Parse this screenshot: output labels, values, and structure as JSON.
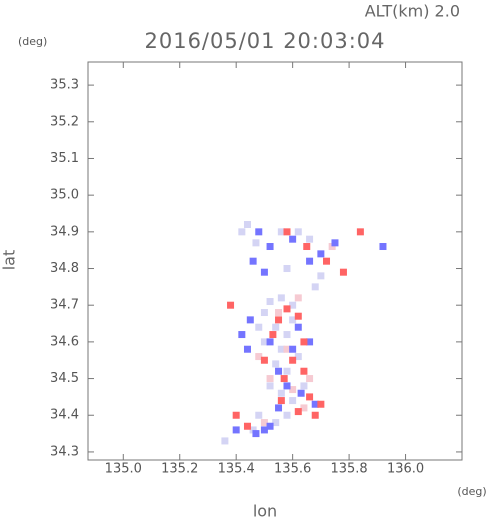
{
  "chart_data": {
    "type": "scatter",
    "title": "2016/05/01 20:03:04",
    "subtitle": "ALT(km) 2.0",
    "x_label": "lon",
    "y_label": "lat",
    "x_unit": "(deg)",
    "y_unit": "(deg)",
    "xlim": [
      134.875,
      136.2
    ],
    "ylim": [
      34.278,
      35.363
    ],
    "xticks": [
      {
        "value": 135,
        "label": "135.0"
      },
      135.2,
      135.4,
      135.6,
      135.8,
      {
        "value": 136,
        "label": "136.0"
      }
    ],
    "yticks": [
      34.3,
      34.4,
      34.5,
      34.6,
      34.7,
      34.8,
      34.9,
      {
        "value": 35,
        "label": "35.0"
      },
      35.1,
      35.2,
      35.3
    ],
    "series": [
      {
        "color": "#d4d4f4",
        "x": [
          135.42,
          135.44,
          135.47,
          135.56,
          135.62,
          135.66,
          135.58,
          135.7,
          135.68,
          135.52,
          135.56,
          135.6,
          135.5,
          135.54,
          135.58,
          135.5,
          135.56,
          135.62,
          135.54,
          135.58,
          135.52,
          135.56,
          135.6,
          135.64,
          135.58,
          135.54,
          135.48,
          135.46,
          135.36,
          135.6,
          135.48
        ],
        "values": [
          34.9,
          34.92,
          34.87,
          34.9,
          34.9,
          34.88,
          34.8,
          34.78,
          34.75,
          34.71,
          34.72,
          34.7,
          34.68,
          34.64,
          34.62,
          34.6,
          34.58,
          34.56,
          34.54,
          34.52,
          34.48,
          34.46,
          34.44,
          34.48,
          34.4,
          34.38,
          34.4,
          34.36,
          34.33,
          34.66,
          34.64
        ]
      },
      {
        "color": "#f6cad2",
        "x": [
          135.55,
          135.62,
          135.58,
          135.52,
          135.6,
          135.64,
          135.5,
          135.66,
          135.48,
          135.74
        ],
        "values": [
          34.68,
          34.72,
          34.58,
          34.5,
          34.47,
          34.42,
          34.38,
          34.5,
          34.56,
          34.86
        ]
      },
      {
        "color": "#7474ff",
        "x": [
          135.48,
          135.52,
          135.6,
          135.46,
          135.5,
          135.66,
          135.7,
          135.75,
          135.92,
          135.45,
          135.42,
          135.52,
          135.6,
          135.62,
          135.55,
          135.58,
          135.63,
          135.68,
          135.55,
          135.5,
          135.47,
          135.52,
          135.4,
          135.44,
          135.66
        ],
        "values": [
          34.9,
          34.86,
          34.88,
          34.82,
          34.79,
          34.82,
          34.84,
          34.87,
          34.86,
          34.66,
          34.62,
          34.6,
          34.58,
          34.64,
          34.52,
          34.48,
          34.46,
          34.43,
          34.42,
          34.36,
          34.35,
          34.37,
          34.36,
          34.58,
          34.6
        ]
      },
      {
        "color": "#ff6464",
        "x": [
          135.58,
          135.65,
          135.84,
          135.72,
          135.78,
          135.38,
          135.58,
          135.62,
          135.55,
          135.53,
          135.64,
          135.6,
          135.5,
          135.57,
          135.64,
          135.66,
          135.7,
          135.68,
          135.62,
          135.4,
          135.44,
          135.56
        ],
        "values": [
          34.9,
          34.86,
          34.9,
          34.82,
          34.79,
          34.7,
          34.69,
          34.67,
          34.66,
          34.62,
          34.6,
          34.55,
          34.55,
          34.5,
          34.52,
          34.45,
          34.43,
          34.4,
          34.41,
          34.4,
          34.37,
          34.44
        ]
      }
    ]
  }
}
